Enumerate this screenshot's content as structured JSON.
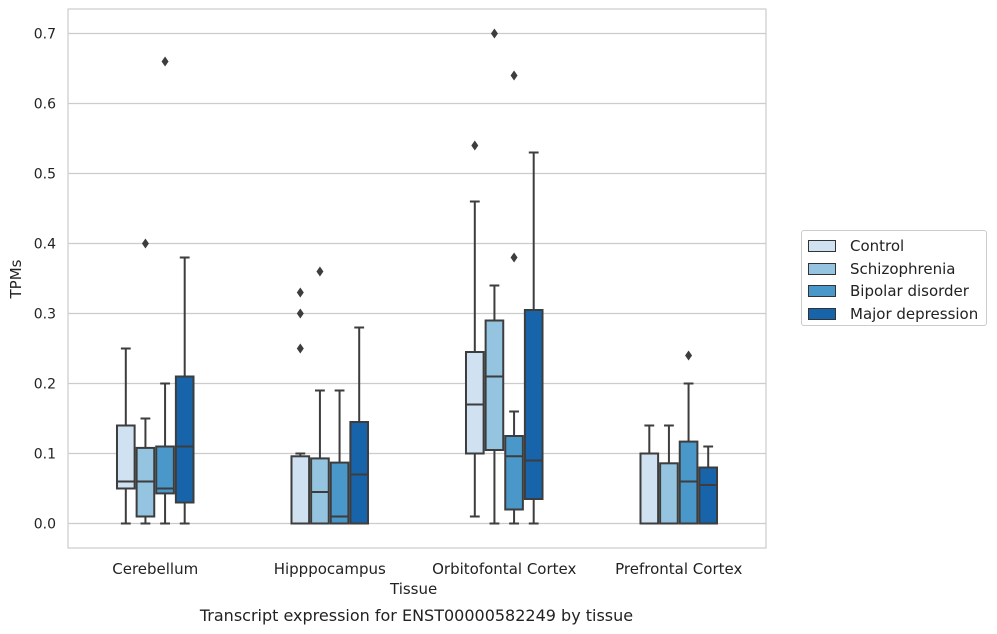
{
  "chart_data": {
    "type": "box",
    "xlabel": "Tissue",
    "ylabel": "TPMs",
    "ylim": [
      -0.035,
      0.735
    ],
    "yticks": [
      "0.0",
      "0.1",
      "0.2",
      "0.3",
      "0.4",
      "0.5",
      "0.6",
      "0.7"
    ],
    "ytick_values": [
      0,
      0.1,
      0.2,
      0.3,
      0.4,
      0.5,
      0.6,
      0.7
    ],
    "grid": "horizontal",
    "legend_position": "right",
    "categories": [
      "Cerebellum",
      "Hipppocampus",
      "Orbitofontal Cortex",
      "Prefrontal Cortex"
    ],
    "series": [
      {
        "name": "Control",
        "color": "#d0e1f2",
        "boxes": [
          {
            "whislo": 0.0,
            "q1": 0.05,
            "med": 0.06,
            "q3": 0.14,
            "whishi": 0.25,
            "fliers": []
          },
          {
            "whislo": 0.0,
            "q1": 0.0,
            "med": 0.0,
            "q3": 0.096,
            "whishi": 0.1,
            "fliers": [
              0.25,
              0.3,
              0.33
            ]
          },
          {
            "whislo": 0.01,
            "q1": 0.1,
            "med": 0.17,
            "q3": 0.245,
            "whishi": 0.46,
            "fliers": [
              0.54
            ]
          },
          {
            "whislo": 0.0,
            "q1": 0.0,
            "med": 0.0,
            "q3": 0.1,
            "whishi": 0.14,
            "fliers": []
          }
        ]
      },
      {
        "name": "Schizophrenia",
        "color": "#94c4df",
        "boxes": [
          {
            "whislo": 0.0,
            "q1": 0.01,
            "med": 0.06,
            "q3": 0.108,
            "whishi": 0.15,
            "fliers": [
              0.4
            ]
          },
          {
            "whislo": 0.0,
            "q1": 0.0,
            "med": 0.045,
            "q3": 0.093,
            "whishi": 0.19,
            "fliers": [
              0.36
            ]
          },
          {
            "whislo": 0.0,
            "q1": 0.105,
            "med": 0.21,
            "q3": 0.29,
            "whishi": 0.34,
            "fliers": [
              0.7
            ]
          },
          {
            "whislo": 0.0,
            "q1": 0.0,
            "med": 0.0,
            "q3": 0.086,
            "whishi": 0.14,
            "fliers": []
          }
        ]
      },
      {
        "name": "Bipolar disorder",
        "color": "#4a98c9",
        "boxes": [
          {
            "whislo": 0.0,
            "q1": 0.043,
            "med": 0.05,
            "q3": 0.11,
            "whishi": 0.2,
            "fliers": [
              0.66
            ]
          },
          {
            "whislo": 0.0,
            "q1": 0.0,
            "med": 0.01,
            "q3": 0.087,
            "whishi": 0.19,
            "fliers": []
          },
          {
            "whislo": 0.0,
            "q1": 0.02,
            "med": 0.096,
            "q3": 0.125,
            "whishi": 0.16,
            "fliers": [
              0.38,
              0.64
            ]
          },
          {
            "whislo": 0.0,
            "q1": 0.0,
            "med": 0.06,
            "q3": 0.117,
            "whishi": 0.2,
            "fliers": [
              0.24
            ]
          }
        ]
      },
      {
        "name": "Major depression",
        "color": "#1764ab",
        "boxes": [
          {
            "whislo": 0.0,
            "q1": 0.03,
            "med": 0.11,
            "q3": 0.21,
            "whishi": 0.38,
            "fliers": []
          },
          {
            "whislo": 0.0,
            "q1": 0.0,
            "med": 0.07,
            "q3": 0.145,
            "whishi": 0.28,
            "fliers": []
          },
          {
            "whislo": 0.0,
            "q1": 0.035,
            "med": 0.09,
            "q3": 0.305,
            "whishi": 0.53,
            "fliers": []
          },
          {
            "whislo": 0.0,
            "q1": 0.0,
            "med": 0.055,
            "q3": 0.08,
            "whishi": 0.11,
            "fliers": []
          }
        ]
      }
    ]
  },
  "caption": "Transcript expression for ENST00000582249 by tissue"
}
